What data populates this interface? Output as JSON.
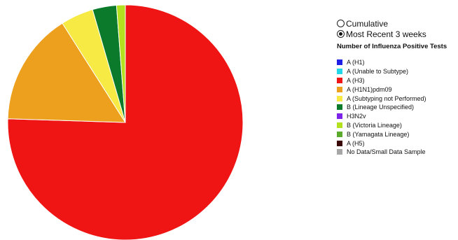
{
  "controls": {
    "options": [
      {
        "label": "Cumulative",
        "checked": false
      },
      {
        "label": "Most Recent 3 weeks",
        "checked": true
      }
    ]
  },
  "legend": {
    "title": "Number of Influenza Positive Tests",
    "items": [
      {
        "label": "A (H1)",
        "color": "#1f1fe6"
      },
      {
        "label": "A (Unable to Subtype)",
        "color": "#22d8e8"
      },
      {
        "label": "A (H3)",
        "color": "#ef1515"
      },
      {
        "label": "A (H1N1)pdm09",
        "color": "#eca01d"
      },
      {
        "label": "A (Subtyping not Performed)",
        "color": "#f7ea45"
      },
      {
        "label": "B (Lineage Unspecified)",
        "color": "#0b7a2a"
      },
      {
        "label": "H3N2v",
        "color": "#7d22e8"
      },
      {
        "label": "B (Victoria Lineage)",
        "color": "#b3e01f"
      },
      {
        "label": "B (Yamagata Lineage)",
        "color": "#5aab2c"
      },
      {
        "label": "A (H5)",
        "color": "#3b0606"
      },
      {
        "label": "No Data/Small Data Sample",
        "color": "#a6a6a6"
      }
    ]
  },
  "chart_data": {
    "type": "pie",
    "legend_position": "right",
    "series": [
      {
        "name": "A (H3)",
        "value": 75.5,
        "color": "#ef1515"
      },
      {
        "name": "A (H1N1)pdm09",
        "value": 15.5,
        "color": "#eca01d"
      },
      {
        "name": "A (Subtyping not Performed)",
        "value": 4.5,
        "color": "#f7ea45"
      },
      {
        "name": "B (Lineage Unspecified)",
        "value": 3.3,
        "color": "#0b7a2a"
      },
      {
        "name": "B (Victoria Lineage)",
        "value": 1.2,
        "color": "#b3e01f"
      }
    ]
  }
}
